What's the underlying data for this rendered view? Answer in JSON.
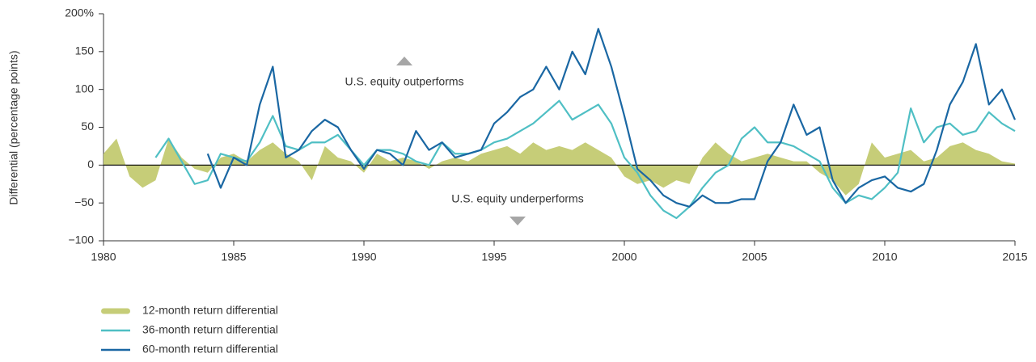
{
  "chart_data": {
    "type": "line",
    "ylabel": "Differential (percentage points)",
    "annotations": [
      "U.S. equity outperforms",
      "U.S. equity underperforms"
    ],
    "x": [
      1980,
      1980.5,
      1981,
      1981.5,
      1982,
      1982.5,
      1983,
      1983.5,
      1984,
      1984.5,
      1985,
      1985.5,
      1986,
      1986.5,
      1987,
      1987.5,
      1988,
      1988.5,
      1989,
      1989.5,
      1990,
      1990.5,
      1991,
      1991.5,
      1992,
      1992.5,
      1993,
      1993.5,
      1994,
      1994.5,
      1995,
      1995.5,
      1996,
      1996.5,
      1997,
      1997.5,
      1998,
      1998.5,
      1999,
      1999.5,
      2000,
      2000.5,
      2001,
      2001.5,
      2002,
      2002.5,
      2003,
      2003.5,
      2004,
      2004.5,
      2005,
      2005.5,
      2006,
      2006.5,
      2007,
      2007.5,
      2008,
      2008.5,
      2009,
      2009.5,
      2010,
      2010.5,
      2011,
      2011.5,
      2012,
      2012.5,
      2013,
      2013.5,
      2014,
      2014.5,
      2015
    ],
    "series": [
      {
        "name": "12-month return differential",
        "color": "#c6cd78",
        "style": "area",
        "values": [
          15,
          35,
          -15,
          -30,
          -20,
          35,
          10,
          -5,
          -10,
          10,
          15,
          5,
          20,
          30,
          15,
          5,
          -20,
          25,
          10,
          5,
          -10,
          15,
          5,
          10,
          5,
          -5,
          5,
          10,
          5,
          15,
          20,
          25,
          15,
          30,
          20,
          25,
          20,
          30,
          20,
          10,
          -15,
          -25,
          -20,
          -30,
          -20,
          -25,
          10,
          30,
          15,
          5,
          10,
          15,
          10,
          5,
          5,
          -10,
          -20,
          -40,
          -25,
          30,
          10,
          15,
          20,
          5,
          10,
          25,
          30,
          20,
          15,
          5,
          2
        ]
      },
      {
        "name": "36-month return differential",
        "color": "#4fbfc4",
        "style": "line",
        "values": [
          null,
          null,
          null,
          null,
          10,
          35,
          5,
          -25,
          -20,
          15,
          10,
          5,
          30,
          65,
          25,
          20,
          30,
          30,
          40,
          20,
          0,
          20,
          20,
          15,
          5,
          0,
          30,
          15,
          15,
          20,
          30,
          35,
          45,
          55,
          70,
          85,
          60,
          70,
          80,
          55,
          10,
          -10,
          -40,
          -60,
          -70,
          -55,
          -30,
          -10,
          0,
          35,
          50,
          30,
          30,
          25,
          15,
          5,
          -30,
          -50,
          -40,
          -45,
          -30,
          -10,
          75,
          30,
          50,
          55,
          40,
          45,
          70,
          55,
          45
        ]
      },
      {
        "name": "60-month return differential",
        "color": "#1a67a3",
        "style": "line",
        "values": [
          null,
          null,
          null,
          null,
          null,
          null,
          null,
          null,
          15,
          -30,
          10,
          0,
          80,
          130,
          10,
          20,
          45,
          60,
          50,
          20,
          -5,
          20,
          15,
          0,
          45,
          20,
          30,
          10,
          15,
          20,
          55,
          70,
          90,
          100,
          130,
          100,
          150,
          120,
          180,
          130,
          65,
          -5,
          -20,
          -40,
          -50,
          -55,
          -40,
          -50,
          -50,
          -45,
          -45,
          5,
          30,
          80,
          40,
          50,
          -20,
          -50,
          -30,
          -20,
          -15,
          -30,
          -35,
          -25,
          20,
          80,
          110,
          160,
          80,
          100,
          60
        ]
      }
    ],
    "xlim": [
      1980,
      2015
    ],
    "xticks": [
      1980,
      1985,
      1990,
      1995,
      2000,
      2005,
      2010,
      2015
    ],
    "ylim": [
      -100,
      200
    ],
    "yticks": [
      {
        "value": -100,
        "label": "−100"
      },
      {
        "value": -50,
        "label": "−50"
      },
      0,
      50,
      100,
      150,
      {
        "value": 200,
        "label": "200%"
      }
    ],
    "grid": false,
    "legend": "bottom-left"
  }
}
